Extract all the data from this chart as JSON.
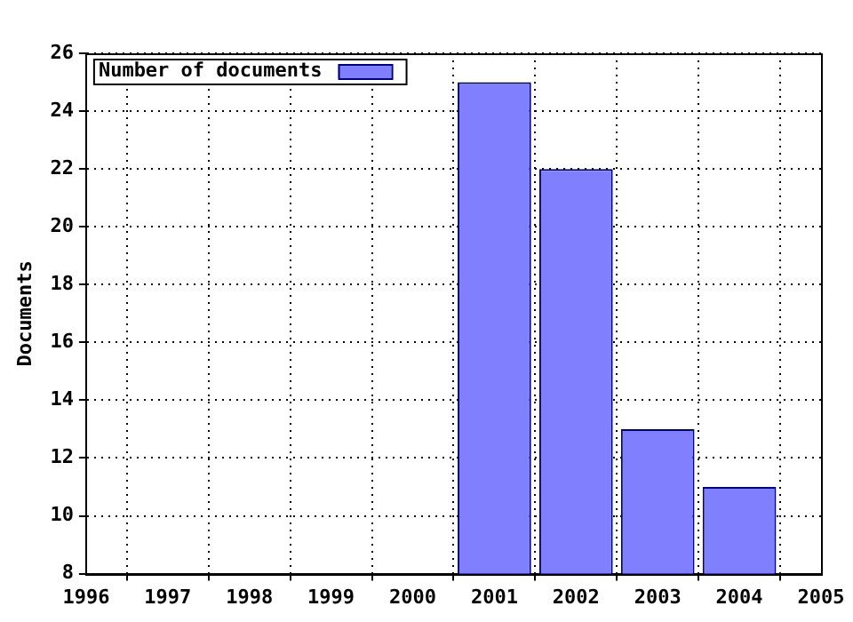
{
  "chart_data": {
    "type": "bar",
    "ylabel": "Documents",
    "x": [
      2001,
      2002,
      2003,
      2004
    ],
    "series": [
      {
        "name": "Number of documents",
        "color": "#8080ff",
        "values": [
          25,
          22,
          13,
          11
        ]
      }
    ],
    "xlim": [
      1996,
      2005
    ],
    "xticks": [
      1996,
      1997,
      1998,
      1999,
      2000,
      2001,
      2002,
      2003,
      2004,
      2005
    ],
    "ylim": [
      8,
      26
    ],
    "yticks": [
      8,
      10,
      12,
      14,
      16,
      18,
      20,
      22,
      24,
      26
    ],
    "grid": true,
    "legend": "top left"
  }
}
